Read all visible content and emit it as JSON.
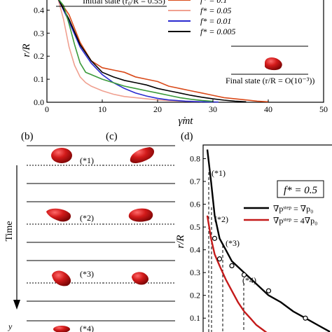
{
  "panel_a": {
    "ylabel": "r/R",
    "xlabel": "γ̇mt",
    "initial_state": "Initial state (r₀/R = 0.55)",
    "final_state": "Final state (r/R = O(10⁻³))",
    "legend": [
      "f* = 0.1",
      "f* = 0.05",
      "f* = 0.01",
      "f* = 0.005"
    ],
    "xticks": [
      "0",
      "10",
      "20",
      "30",
      "40",
      "50"
    ],
    "yticks": [
      "0.0",
      "0.1",
      "0.2",
      "0.3",
      "0.4"
    ]
  },
  "panel_b": {
    "label": "(b)",
    "markers": [
      "(*1)",
      "(*2)",
      "(*3)",
      "(*4)"
    ],
    "time_label": "Time",
    "y_label": "y"
  },
  "panel_c": {
    "label": "(c)"
  },
  "panel_d": {
    "label": "(d)",
    "fbox": "f* = 0.5",
    "ylabel": "r/R",
    "markers": [
      "(*1)",
      "(*2)",
      "(*3)",
      "(*4)"
    ],
    "legend": [
      "∇pˢᵗᵉᵖ = ∇p₀",
      "∇pˢᵗᵉᵖ = 4∇p₀"
    ],
    "yticks": [
      "0.1",
      "0.2",
      "0.3",
      "0.4",
      "0.5",
      "0.6",
      "0.7",
      "0.8"
    ]
  },
  "chart_data": [
    {
      "type": "line",
      "xlabel": "γ̇mt",
      "ylabel": "r/R",
      "xlim": [
        0,
        50
      ],
      "ylim": [
        0,
        0.45
      ],
      "series": [
        {
          "name": "f* = 0.1",
          "color": "#d94a1a",
          "x": [
            2,
            4,
            6,
            8,
            10,
            12,
            14,
            16,
            18,
            20,
            22,
            24,
            26,
            28,
            30,
            32,
            34,
            36,
            38,
            40
          ],
          "y": [
            0.45,
            0.38,
            0.26,
            0.18,
            0.15,
            0.14,
            0.13,
            0.11,
            0.1,
            0.09,
            0.07,
            0.06,
            0.05,
            0.04,
            0.03,
            0.02,
            0.015,
            0.01,
            0.005,
            0.002
          ]
        },
        {
          "name": "f* = 0.05",
          "color": "#f0a090",
          "x": [
            2,
            3,
            4,
            5,
            6,
            7,
            8,
            10,
            12,
            14,
            16,
            18,
            20,
            22,
            25,
            28
          ],
          "y": [
            0.45,
            0.36,
            0.24,
            0.16,
            0.11,
            0.085,
            0.07,
            0.05,
            0.035,
            0.025,
            0.02,
            0.015,
            0.01,
            0.007,
            0.004,
            0.002
          ]
        },
        {
          "name": "f* = 0.01",
          "color": "#2a2ad0",
          "x": [
            2,
            4,
            6,
            8,
            10,
            12,
            14,
            16,
            18,
            20,
            22,
            25,
            28,
            31
          ],
          "y": [
            0.45,
            0.35,
            0.24,
            0.17,
            0.12,
            0.085,
            0.06,
            0.04,
            0.027,
            0.017,
            0.01,
            0.005,
            0.002,
            0.001
          ]
        },
        {
          "name": "f* = 0.005",
          "color": "#000000",
          "x": [
            2,
            4,
            6,
            8,
            10,
            12,
            14,
            16,
            18,
            20,
            22,
            24,
            26,
            28,
            30,
            32,
            34,
            36
          ],
          "y": [
            0.45,
            0.36,
            0.25,
            0.18,
            0.13,
            0.11,
            0.095,
            0.085,
            0.075,
            0.06,
            0.05,
            0.04,
            0.03,
            0.022,
            0.015,
            0.009,
            0.005,
            0.002
          ]
        },
        {
          "name": "",
          "color": "#3a9a3a",
          "x": [
            2,
            3,
            4,
            5,
            6,
            7,
            8,
            10,
            12,
            14,
            16,
            18,
            20,
            22,
            24,
            26,
            28,
            30
          ],
          "y": [
            0.45,
            0.42,
            0.34,
            0.25,
            0.17,
            0.13,
            0.12,
            0.1,
            0.085,
            0.07,
            0.06,
            0.05,
            0.04,
            0.03,
            0.02,
            0.013,
            0.008,
            0.004
          ]
        }
      ]
    },
    {
      "type": "line",
      "ylabel": "r/R",
      "ylim": [
        0.03,
        0.86
      ],
      "series": [
        {
          "name": "∇pˢᵗᵉᵖ = ∇p₀",
          "color": "#000000",
          "x": [
            0,
            0.3,
            0.6,
            1,
            1.5,
            2,
            3,
            4,
            5,
            6,
            7,
            8,
            9,
            10
          ],
          "y": [
            0.84,
            0.7,
            0.55,
            0.45,
            0.4,
            0.35,
            0.3,
            0.25,
            0.2,
            0.17,
            0.13,
            0.1,
            0.07,
            0.04
          ]
        },
        {
          "name": "∇pˢᵗᵉᵖ = 4∇p₀",
          "color": "#c41a1a",
          "x": [
            0,
            0.3,
            0.6,
            1,
            1.5,
            2,
            2.5,
            3,
            3.5,
            4,
            4.5,
            5
          ],
          "y": [
            0.55,
            0.45,
            0.38,
            0.33,
            0.27,
            0.22,
            0.17,
            0.13,
            0.1,
            0.07,
            0.05,
            0.03
          ]
        }
      ]
    }
  ]
}
